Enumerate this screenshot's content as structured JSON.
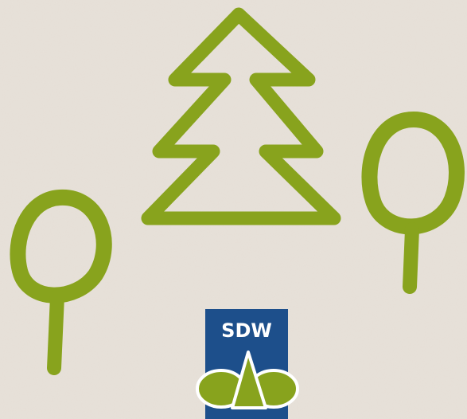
{
  "logo": {
    "text": "SDW"
  }
}
